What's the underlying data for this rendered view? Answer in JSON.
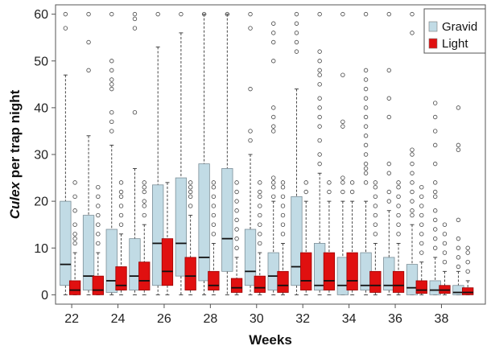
{
  "chart_data": {
    "type": "box",
    "xlabel": "Weeks",
    "ylabel_italic": "Culex",
    "ylabel_rest": " per trap night",
    "ylim": [
      -2,
      62
    ],
    "yticks": [
      0,
      10,
      20,
      30,
      40,
      50,
      60
    ],
    "xlim": [
      21.3,
      39.9
    ],
    "xticks": [
      22,
      24,
      26,
      28,
      30,
      32,
      34,
      36,
      38
    ],
    "legend_position": "top-right",
    "grid": false,
    "series": [
      {
        "name": "Gravid",
        "color": "#c1dbe5",
        "boxes": [
          {
            "week": 22,
            "q1": 2,
            "median": 6.5,
            "q3": 20,
            "lo": 0,
            "hi": 47,
            "outliers": [
              57,
              60
            ]
          },
          {
            "week": 23,
            "q1": 1,
            "median": 4,
            "q3": 17,
            "lo": 0,
            "hi": 34,
            "outliers": [
              48,
              54,
              60
            ]
          },
          {
            "week": 24,
            "q1": 0.5,
            "median": 3,
            "q3": 14,
            "lo": 0,
            "hi": 32,
            "outliers": [
              35,
              37,
              39,
              44,
              45,
              46,
              48,
              50,
              60
            ]
          },
          {
            "week": 25,
            "q1": 1,
            "median": 4,
            "q3": 12,
            "lo": 0,
            "hi": 27,
            "outliers": [
              39,
              57,
              59,
              60
            ]
          },
          {
            "week": 26,
            "q1": 2,
            "median": 11,
            "q3": 23.5,
            "lo": 0,
            "hi": 53,
            "outliers": [
              60
            ]
          },
          {
            "week": 27,
            "q1": 4,
            "median": 11,
            "q3": 25,
            "lo": 0,
            "hi": 56,
            "outliers": [
              60
            ]
          },
          {
            "week": 28,
            "q1": 3,
            "median": 8,
            "q3": 28,
            "lo": 0,
            "hi": 60,
            "outliers": [
              60
            ]
          },
          {
            "week": 29,
            "q1": 5,
            "median": 12,
            "q3": 27,
            "lo": 0,
            "hi": 60,
            "outliers": [
              60
            ]
          },
          {
            "week": 30,
            "q1": 2,
            "median": 5,
            "q3": 14,
            "lo": 0,
            "hi": 30,
            "outliers": [
              33,
              35,
              44,
              57,
              60
            ]
          },
          {
            "week": 31,
            "q1": 1,
            "median": 4,
            "q3": 9,
            "lo": 0,
            "hi": 20,
            "outliers": [
              21,
              23,
              24,
              25,
              35,
              36,
              38,
              40,
              50,
              54,
              56,
              58
            ]
          },
          {
            "week": 32,
            "q1": 2,
            "median": 6,
            "q3": 21,
            "lo": 0,
            "hi": 44,
            "outliers": [
              52,
              54,
              56,
              58,
              60
            ]
          },
          {
            "week": 33,
            "q1": 1,
            "median": 2,
            "q3": 11,
            "lo": 0,
            "hi": 26,
            "outliers": [
              28,
              30,
              33,
              36,
              38,
              40,
              42,
              45,
              47,
              48,
              50,
              52,
              60
            ]
          },
          {
            "week": 34,
            "q1": 0,
            "median": 2,
            "q3": 8,
            "lo": 0,
            "hi": 20,
            "outliers": [
              22,
              24,
              25,
              36,
              37,
              47,
              60
            ]
          },
          {
            "week": 35,
            "q1": 1,
            "median": 2,
            "q3": 9,
            "lo": 0,
            "hi": 20,
            "outliers": [
              24,
              26,
              27,
              28,
              30,
              32,
              34,
              36,
              38,
              40,
              42,
              44,
              46,
              48,
              60
            ]
          },
          {
            "week": 36,
            "q1": 1,
            "median": 2,
            "q3": 8,
            "lo": 0,
            "hi": 18,
            "outliers": [
              20,
              22,
              26,
              28,
              38,
              42,
              48,
              60
            ]
          },
          {
            "week": 37,
            "q1": 0,
            "median": 1.5,
            "q3": 6.5,
            "lo": 0,
            "hi": 15,
            "outliers": [
              17,
              18,
              20,
              22,
              24,
              26,
              28,
              30,
              31,
              56,
              60
            ]
          },
          {
            "week": 38,
            "q1": 0,
            "median": 1,
            "q3": 3,
            "lo": 0,
            "hi": 8,
            "outliers": [
              10,
              12,
              14,
              16,
              18,
              21,
              22,
              24,
              28,
              32,
              35,
              38,
              41
            ]
          },
          {
            "week": 39,
            "q1": 0,
            "median": 0.5,
            "q3": 2,
            "lo": 0,
            "hi": 5,
            "outliers": [
              6,
              8,
              10,
              12,
              16,
              31,
              32,
              40
            ]
          }
        ]
      },
      {
        "name": "Light",
        "color": "#e01010",
        "boxes": [
          {
            "week": 22,
            "q1": 0,
            "median": 1,
            "q3": 3,
            "lo": 0,
            "hi": 9,
            "outliers": [
              11,
              12,
              13,
              15,
              18,
              21,
              24
            ]
          },
          {
            "week": 23,
            "q1": 0,
            "median": 1,
            "q3": 4,
            "lo": 0,
            "hi": 9,
            "outliers": [
              11,
              13,
              15,
              17,
              19,
              21,
              23
            ]
          },
          {
            "week": 24,
            "q1": 1,
            "median": 2,
            "q3": 6,
            "lo": 0,
            "hi": 13,
            "outliers": [
              15,
              17,
              19,
              21,
              22,
              24
            ]
          },
          {
            "week": 25,
            "q1": 1,
            "median": 3,
            "q3": 7,
            "lo": 0,
            "hi": 15,
            "outliers": [
              17,
              19,
              20,
              22,
              23,
              24
            ]
          },
          {
            "week": 26,
            "q1": 2,
            "median": 5,
            "q3": 12,
            "lo": 0,
            "hi": 24,
            "outliers": []
          },
          {
            "week": 27,
            "q1": 1,
            "median": 4,
            "q3": 8,
            "lo": 0,
            "hi": 17,
            "outliers": [
              19,
              21,
              22,
              23,
              24
            ]
          },
          {
            "week": 28,
            "q1": 1,
            "median": 2,
            "q3": 5,
            "lo": 0,
            "hi": 11,
            "outliers": [
              13,
              15,
              17,
              19,
              21,
              23,
              24
            ]
          },
          {
            "week": 29,
            "q1": 0.5,
            "median": 1.5,
            "q3": 3.5,
            "lo": 0,
            "hi": 8,
            "outliers": [
              10,
              12,
              14,
              16,
              18,
              20,
              22,
              24
            ]
          },
          {
            "week": 30,
            "q1": 0.5,
            "median": 1.5,
            "q3": 4,
            "lo": 0,
            "hi": 9,
            "outliers": [
              11,
              13,
              15,
              17,
              19,
              21,
              22,
              24
            ]
          },
          {
            "week": 31,
            "q1": 0.5,
            "median": 2,
            "q3": 5,
            "lo": 0,
            "hi": 11,
            "outliers": [
              13,
              15,
              17,
              19,
              21,
              23,
              24
            ]
          },
          {
            "week": 32,
            "q1": 1,
            "median": 3,
            "q3": 9,
            "lo": 0,
            "hi": 20,
            "outliers": [
              22,
              24
            ]
          },
          {
            "week": 33,
            "q1": 1,
            "median": 3,
            "q3": 9,
            "lo": 0,
            "hi": 20,
            "outliers": [
              22,
              24
            ]
          },
          {
            "week": 34,
            "q1": 1,
            "median": 3,
            "q3": 9,
            "lo": 0,
            "hi": 20,
            "outliers": [
              22,
              24
            ]
          },
          {
            "week": 35,
            "q1": 0.5,
            "median": 2,
            "q3": 5,
            "lo": 0,
            "hi": 11,
            "outliers": [
              13,
              15,
              17,
              19,
              21,
              23,
              24
            ]
          },
          {
            "week": 36,
            "q1": 0.5,
            "median": 2,
            "q3": 5,
            "lo": 0,
            "hi": 11,
            "outliers": [
              13,
              15,
              17,
              19,
              21,
              23,
              24
            ]
          },
          {
            "week": 37,
            "q1": 0.3,
            "median": 1,
            "q3": 3,
            "lo": 0,
            "hi": 7,
            "outliers": [
              9,
              11,
              13,
              15,
              17,
              19,
              21,
              23
            ]
          },
          {
            "week": 38,
            "q1": 0.3,
            "median": 1,
            "q3": 2,
            "lo": 0,
            "hi": 5,
            "outliers": [
              7,
              9,
              11,
              13,
              15
            ]
          },
          {
            "week": 39,
            "q1": 0,
            "median": 0.5,
            "q3": 1.5,
            "lo": 0,
            "hi": 3,
            "outliers": [
              5,
              7,
              9,
              10
            ]
          }
        ]
      }
    ]
  }
}
